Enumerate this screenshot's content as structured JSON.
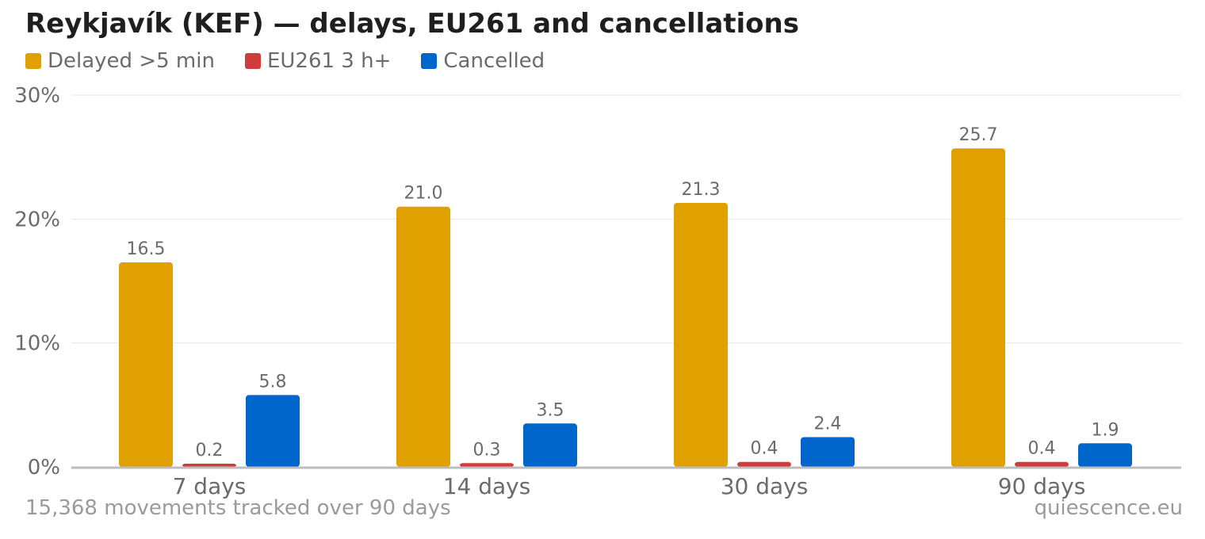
{
  "chart_data": {
    "type": "bar",
    "title": "Reykjavík (KEF) — delays, EU261 and cancellations",
    "categories": [
      "7 days",
      "14 days",
      "30 days",
      "90 days"
    ],
    "series": [
      {
        "name": "Delayed >5 min",
        "color": "#e0a000",
        "values": [
          16.5,
          21.0,
          21.3,
          25.7
        ]
      },
      {
        "name": "EU261 3 h+",
        "color": "#d03c3c",
        "values": [
          0.2,
          0.3,
          0.4,
          0.4
        ]
      },
      {
        "name": "Cancelled",
        "color": "#0066cc",
        "values": [
          5.8,
          3.5,
          2.4,
          1.9
        ]
      }
    ],
    "y_ticks": [
      "0%",
      "10%",
      "20%",
      "30%"
    ],
    "ylim": [
      0,
      30
    ],
    "grid": true,
    "legend_position": "top-left"
  },
  "footnote": "15,368 movements tracked over 90 days",
  "source": "quiescence.eu"
}
